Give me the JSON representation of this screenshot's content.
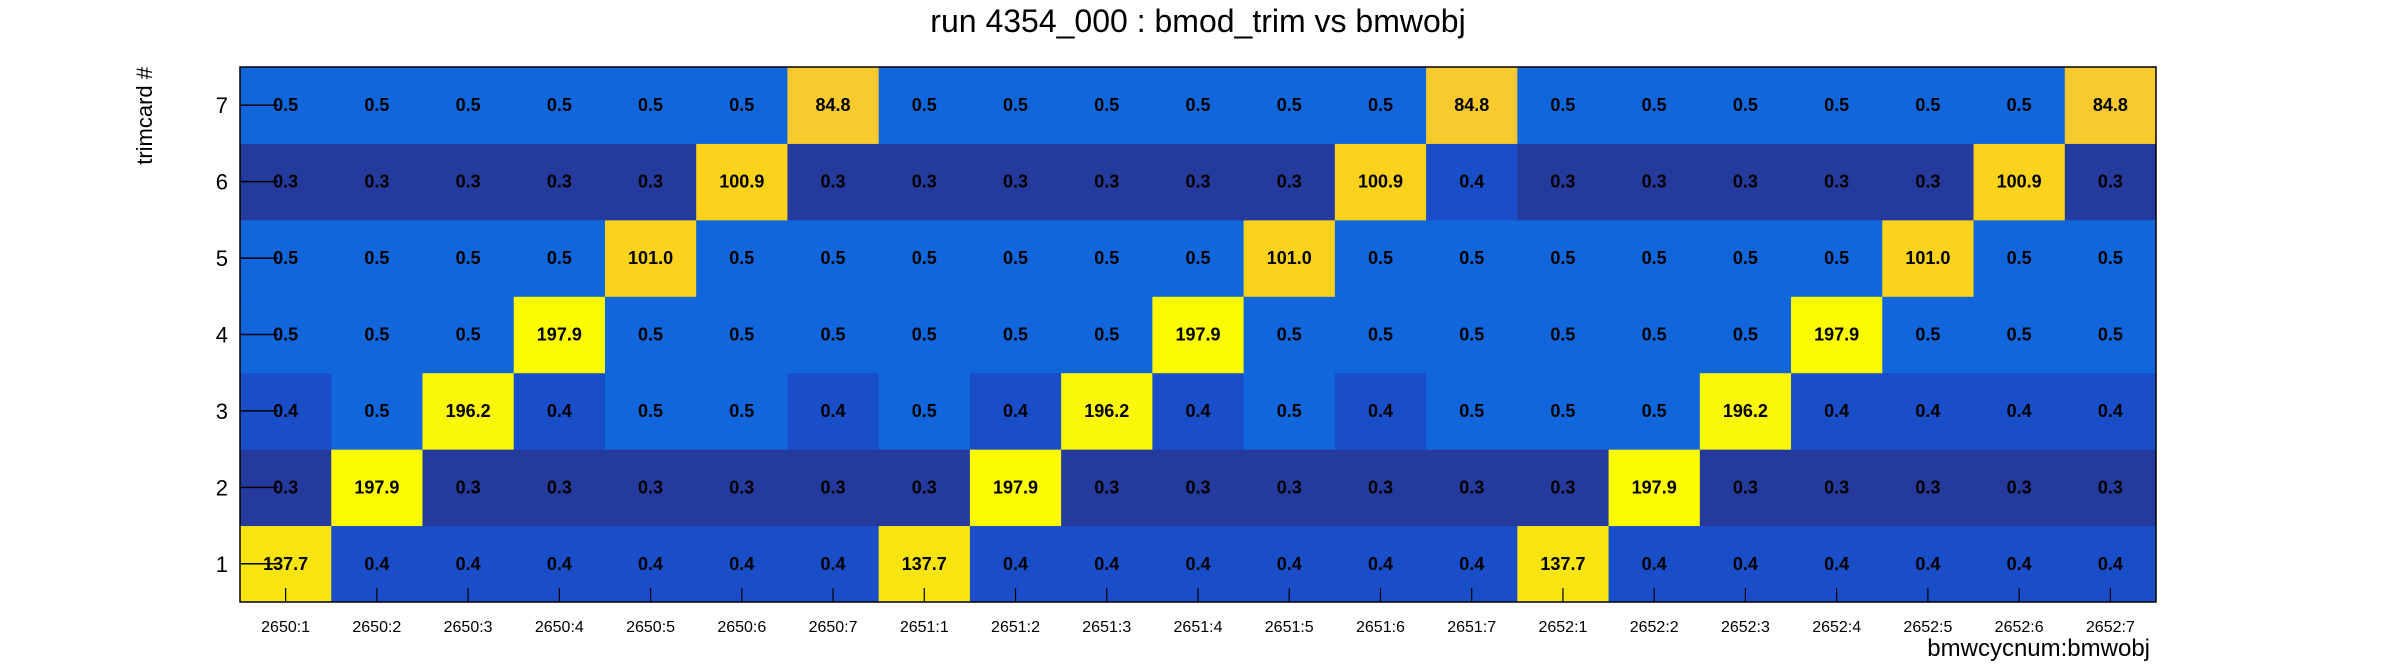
{
  "chart_data": {
    "type": "heatmap",
    "title": "run 4354_000 : bmod_trim vs bmwobj",
    "xlabel": "bmwcycnum:bmwobj",
    "ylabel": "trimcard #",
    "x_categories": [
      "2650:1",
      "2650:2",
      "2650:3",
      "2650:4",
      "2650:5",
      "2650:6",
      "2650:7",
      "2651:1",
      "2651:2",
      "2651:3",
      "2651:4",
      "2651:5",
      "2651:6",
      "2651:7",
      "2652:1",
      "2652:2",
      "2652:3",
      "2652:4",
      "2652:5",
      "2652:6",
      "2652:7"
    ],
    "y_categories": [
      "1",
      "2",
      "3",
      "4",
      "5",
      "6",
      "7"
    ],
    "values": [
      [
        137.7,
        0.4,
        0.4,
        0.4,
        0.4,
        0.4,
        0.4,
        137.7,
        0.4,
        0.4,
        0.4,
        0.4,
        0.4,
        0.4,
        137.7,
        0.4,
        0.4,
        0.4,
        0.4,
        0.4,
        0.4
      ],
      [
        0.3,
        197.9,
        0.3,
        0.3,
        0.3,
        0.3,
        0.3,
        0.3,
        197.9,
        0.3,
        0.3,
        0.3,
        0.3,
        0.3,
        0.3,
        197.9,
        0.3,
        0.3,
        0.3,
        0.3,
        0.3
      ],
      [
        0.4,
        0.5,
        196.2,
        0.4,
        0.5,
        0.5,
        0.4,
        0.5,
        0.4,
        196.2,
        0.4,
        0.5,
        0.4,
        0.5,
        0.5,
        0.5,
        196.2,
        0.4,
        0.4,
        0.4,
        0.4
      ],
      [
        0.5,
        0.5,
        0.5,
        197.9,
        0.5,
        0.5,
        0.5,
        0.5,
        0.5,
        0.5,
        197.9,
        0.5,
        0.5,
        0.5,
        0.5,
        0.5,
        0.5,
        197.9,
        0.5,
        0.5,
        0.5
      ],
      [
        0.5,
        0.5,
        0.5,
        0.5,
        101.0,
        0.5,
        0.5,
        0.5,
        0.5,
        0.5,
        0.5,
        101.0,
        0.5,
        0.5,
        0.5,
        0.5,
        0.5,
        0.5,
        101.0,
        0.5,
        0.5
      ],
      [
        0.3,
        0.3,
        0.3,
        0.3,
        0.3,
        100.9,
        0.3,
        0.3,
        0.3,
        0.3,
        0.3,
        0.3,
        100.9,
        0.4,
        0.3,
        0.3,
        0.3,
        0.3,
        0.3,
        100.9,
        0.3
      ],
      [
        0.5,
        0.5,
        0.5,
        0.5,
        0.5,
        0.5,
        84.8,
        0.5,
        0.5,
        0.5,
        0.5,
        0.5,
        0.5,
        84.8,
        0.5,
        0.5,
        0.5,
        0.5,
        0.5,
        0.5,
        84.8
      ]
    ],
    "value_labels": [
      [
        "137.7",
        "0.4",
        "0.4",
        "0.4",
        "0.4",
        "0.4",
        "0.4",
        "137.7",
        "0.4",
        "0.4",
        "0.4",
        "0.4",
        "0.4",
        "0.4",
        "137.7",
        "0.4",
        "0.4",
        "0.4",
        "0.4",
        "0.4",
        "0.4"
      ],
      [
        "0.3",
        "197.9",
        "0.3",
        "0.3",
        "0.3",
        "0.3",
        "0.3",
        "0.3",
        "197.9",
        "0.3",
        "0.3",
        "0.3",
        "0.3",
        "0.3",
        "0.3",
        "197.9",
        "0.3",
        "0.3",
        "0.3",
        "0.3",
        "0.3"
      ],
      [
        "0.4",
        "0.5",
        "196.2",
        "0.4",
        "0.5",
        "0.5",
        "0.4",
        "0.5",
        "0.4",
        "196.2",
        "0.4",
        "0.5",
        "0.4",
        "0.5",
        "0.5",
        "0.5",
        "196.2",
        "0.4",
        "0.4",
        "0.4",
        "0.4"
      ],
      [
        "0.5",
        "0.5",
        "0.5",
        "197.9",
        "0.5",
        "0.5",
        "0.5",
        "0.5",
        "0.5",
        "0.5",
        "197.9",
        "0.5",
        "0.5",
        "0.5",
        "0.5",
        "0.5",
        "0.5",
        "197.9",
        "0.5",
        "0.5",
        "0.5"
      ],
      [
        "0.5",
        "0.5",
        "0.5",
        "0.5",
        "101.0",
        "0.5",
        "0.5",
        "0.5",
        "0.5",
        "0.5",
        "0.5",
        "101.0",
        "0.5",
        "0.5",
        "0.5",
        "0.5",
        "0.5",
        "0.5",
        "101.0",
        "0.5",
        "0.5"
      ],
      [
        "0.3",
        "0.3",
        "0.3",
        "0.3",
        "0.3",
        "100.9",
        "0.3",
        "0.3",
        "0.3",
        "0.3",
        "0.3",
        "0.3",
        "100.9",
        "0.4",
        "0.3",
        "0.3",
        "0.3",
        "0.3",
        "0.3",
        "100.9",
        "0.3"
      ],
      [
        "0.5",
        "0.5",
        "0.5",
        "0.5",
        "0.5",
        "0.5",
        "84.8",
        "0.5",
        "0.5",
        "0.5",
        "0.5",
        "0.5",
        "0.5",
        "84.8",
        "0.5",
        "0.5",
        "0.5",
        "0.5",
        "0.5",
        "0.5",
        "84.8"
      ]
    ],
    "colors": {
      "low_0_3": "#243a9c",
      "low_0_4": "#1a4ec8",
      "low_0_5": "#1166dc",
      "mid_84": "#f9ca2e",
      "mid_100": "#fbd31c",
      "high_137": "#f7e411",
      "high_196": "#fbf70a",
      "high_197": "#fdfb00"
    },
    "grid": false,
    "legend": "none"
  }
}
